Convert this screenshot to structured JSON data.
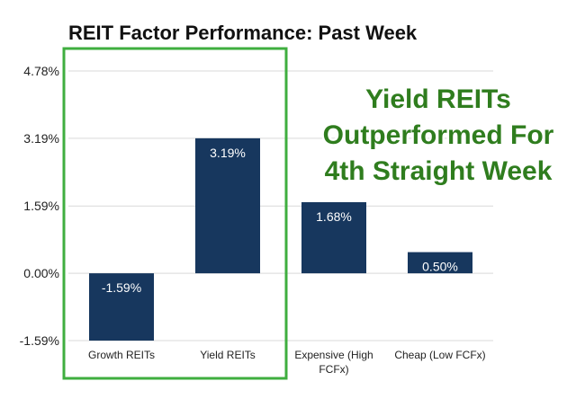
{
  "chart_data": {
    "type": "bar",
    "title": "REIT Factor Performance: Past Week",
    "xlabel": "",
    "ylabel": "",
    "categories": [
      "Growth REITs",
      "Yield REITs",
      "Expensive (High FCFx)",
      "Cheap (Low FCFx)"
    ],
    "category_lines": [
      [
        "Growth REITs"
      ],
      [
        "Yield REITs"
      ],
      [
        "Expensive (High",
        "FCFx)"
      ],
      [
        "Cheap (Low FCFx)"
      ]
    ],
    "values": [
      -1.59,
      3.19,
      1.68,
      0.5
    ],
    "value_labels": [
      "-1.59%",
      "3.19%",
      "1.68%",
      "0.50%"
    ],
    "yticks": [
      4.78,
      3.19,
      1.59,
      0.0,
      -1.59
    ],
    "ytick_labels": [
      "4.78%",
      "3.19%",
      "1.59%",
      "0.00%",
      "-1.59%"
    ],
    "ylim": [
      -1.59,
      4.78
    ],
    "grid": true,
    "bar_color": "#17375e",
    "highlight_category": "Growth REITs / Yield REITs",
    "highlight_color": "#3fae3f",
    "annotation": [
      "Yield REITs",
      "Outperformed For",
      "4th Straight Week"
    ],
    "annotation_color": "#2f7d1e"
  }
}
